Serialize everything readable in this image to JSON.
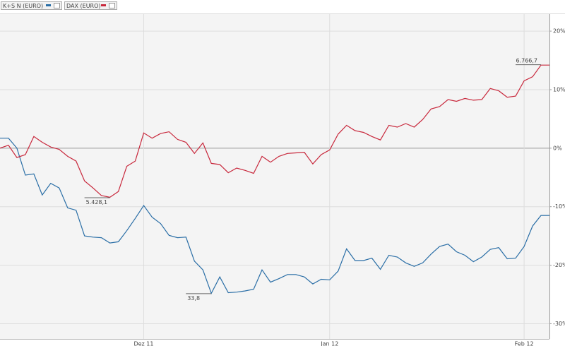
{
  "chart_data": {
    "type": "line",
    "categories": [
      null,
      null,
      null,
      null,
      null,
      null,
      null,
      null,
      null,
      null,
      null,
      null,
      null,
      null,
      null,
      null,
      null,
      "Dez 11",
      null,
      null,
      null,
      null,
      null,
      null,
      null,
      null,
      null,
      null,
      null,
      null,
      null,
      null,
      null,
      null,
      null,
      null,
      null,
      null,
      null,
      "Jan 12",
      null,
      null,
      null,
      null,
      null,
      null,
      null,
      null,
      null,
      null,
      null,
      null,
      null,
      null,
      null,
      null,
      null,
      null,
      null,
      null,
      null,
      null,
      "Feb 12",
      null,
      null,
      null
    ],
    "series": [
      {
        "name": "K+S N (EURO)",
        "color": "#2a6ea6",
        "values": [
          1.7,
          1.7,
          0,
          -4.6,
          -4.4,
          -8.0,
          -6.0,
          -6.8,
          -10.2,
          -10.6,
          -15.0,
          -15.2,
          -15.3,
          -16.2,
          -16.0,
          -14.1,
          -12.0,
          -9.8,
          -11.8,
          -12.9,
          -14.9,
          -15.3,
          -15.2,
          -19.3,
          -20.8,
          -24.8,
          -22.0,
          -24.7,
          -24.6,
          -24.4,
          -24.1,
          -20.8,
          -22.9,
          -22.3,
          -21.6,
          -21.6,
          -22.0,
          -23.2,
          -22.4,
          -22.5,
          -21.0,
          -17.2,
          -19.2,
          -19.2,
          -18.8,
          -20.7,
          -18.3,
          -18.6,
          -19.6,
          -20.2,
          -19.6,
          -18.1,
          -16.8,
          -16.4,
          -17.7,
          -18.3,
          -19.4,
          -18.6,
          -17.3,
          -17.0,
          -18.9,
          -18.8,
          -16.8,
          -13.3,
          -11.5,
          -11.5
        ]
      },
      {
        "name": "DAX (EURO)",
        "color": "#c8283c",
        "values": [
          0,
          0.5,
          -1.6,
          -1.1,
          2.0,
          1.0,
          0.2,
          -0.2,
          -1.4,
          -2.2,
          -5.6,
          -6.8,
          -8.1,
          -8.4,
          -7.4,
          -3.1,
          -2.2,
          2.6,
          1.7,
          2.5,
          2.8,
          1.5,
          1.0,
          -0.9,
          0.9,
          -2.6,
          -2.8,
          -4.2,
          -3.4,
          -3.8,
          -4.3,
          -1.4,
          -2.4,
          -1.4,
          -0.9,
          -0.8,
          -0.7,
          -2.7,
          -1.1,
          -0.3,
          2.4,
          3.9,
          3.0,
          2.7,
          2.0,
          1.4,
          3.9,
          3.6,
          4.2,
          3.6,
          4.9,
          6.7,
          7.1,
          8.3,
          8.0,
          8.5,
          8.2,
          8.3,
          10.2,
          9.8,
          8.7,
          8.9,
          11.5,
          12.2,
          14.2,
          14.2
        ]
      }
    ],
    "annotations": [
      "6.766,7",
      "5.428,1",
      "33,8"
    ],
    "ylim": [
      -32.6,
      21.7
    ],
    "yticks": [
      {
        "value": 20,
        "label": "20%"
      },
      {
        "value": 10,
        "label": "10%"
      },
      {
        "value": 0,
        "label": "0%"
      },
      {
        "value": -10,
        "label": "-10%"
      },
      {
        "value": -20,
        "label": "-20%"
      },
      {
        "value": -30,
        "label": "-30%"
      }
    ],
    "grid": true
  }
}
